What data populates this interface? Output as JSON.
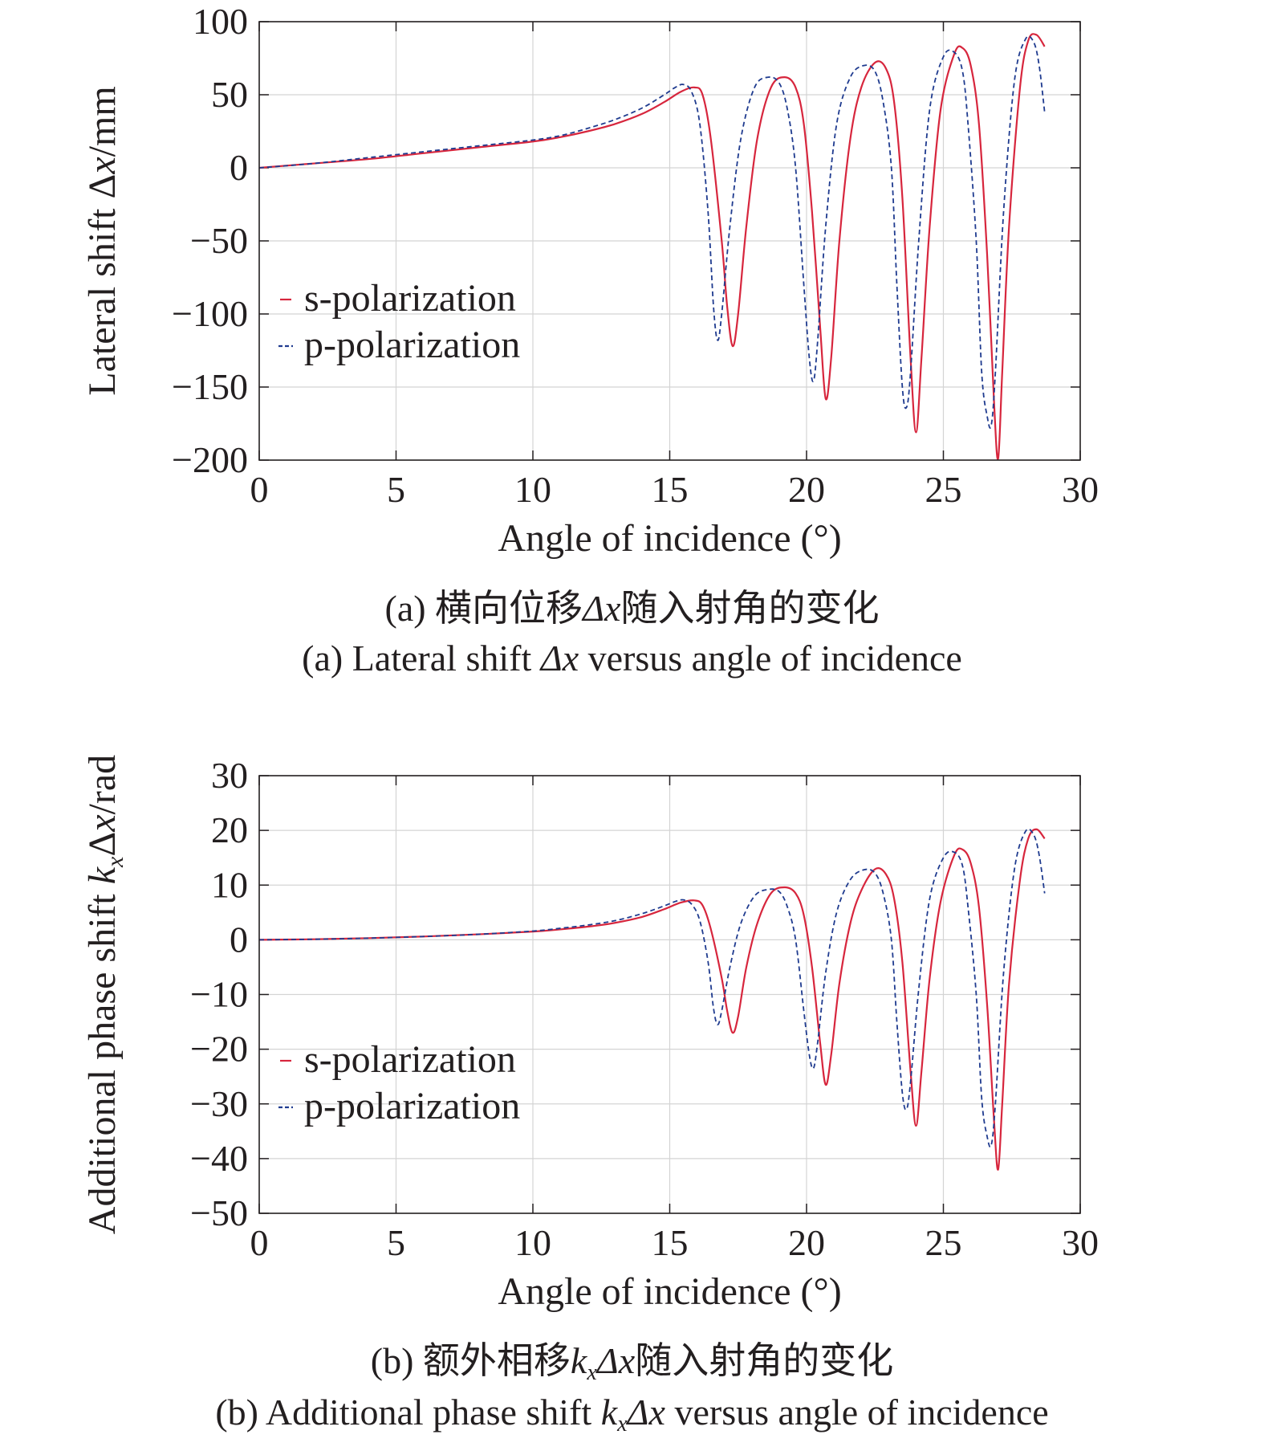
{
  "chart_data": [
    {
      "type": "line",
      "panel": "a",
      "xlabel": "Angle of incidence (°)",
      "ylabel": "Lateral shift Δx/mm",
      "xlim": [
        0,
        30
      ],
      "ylim": [
        -200,
        100
      ],
      "xticks": [
        0,
        5,
        10,
        15,
        20,
        25,
        30
      ],
      "yticks": [
        100,
        50,
        0,
        -50,
        -100,
        -150,
        -200
      ],
      "grid": true,
      "legend_position": "middle-left",
      "series": [
        {
          "name": "s-polarization",
          "style": "solid",
          "color": "#d7263d",
          "x": [
            0,
            2,
            4,
            6,
            8,
            10,
            11,
            12,
            13,
            14,
            14.8,
            15.4,
            15.9,
            16.2,
            16.5,
            16.9,
            17.1,
            17.3,
            17.5,
            17.8,
            18.2,
            18.7,
            19.2,
            19.6,
            19.9,
            20.2,
            20.5,
            20.7,
            20.9,
            21.2,
            21.6,
            22.0,
            22.5,
            22.9,
            23.2,
            23.5,
            23.8,
            24.0,
            24.2,
            24.5,
            24.9,
            25.4,
            25.7,
            26.0,
            26.3,
            26.6,
            26.85,
            27.0,
            27.15,
            27.4,
            27.8,
            28.1,
            28.4,
            28.7
          ],
          "y": [
            0,
            3,
            6,
            10,
            14,
            18,
            21,
            25,
            30,
            37,
            45,
            52,
            55,
            50,
            20,
            -50,
            -95,
            -122,
            -100,
            -40,
            20,
            55,
            62,
            55,
            30,
            -30,
            -110,
            -158,
            -130,
            -50,
            20,
            55,
            72,
            68,
            45,
            -20,
            -130,
            -181,
            -130,
            -40,
            40,
            78,
            82,
            70,
            30,
            -60,
            -160,
            -199,
            -140,
            -40,
            55,
            87,
            91,
            83
          ]
        },
        {
          "name": "p-polarization",
          "style": "dashed",
          "color": "#1f3b8f",
          "x": [
            0,
            2,
            4,
            6,
            8,
            10,
            11,
            12,
            13,
            14,
            14.8,
            15.2,
            15.5,
            15.8,
            16.1,
            16.4,
            16.6,
            16.75,
            16.9,
            17.2,
            17.6,
            18.1,
            18.6,
            19.0,
            19.3,
            19.6,
            19.9,
            20.1,
            20.25,
            20.4,
            20.7,
            21.1,
            21.6,
            22.1,
            22.5,
            22.8,
            23.1,
            23.3,
            23.5,
            23.65,
            23.8,
            24.1,
            24.5,
            25.0,
            25.4,
            25.7,
            25.9,
            26.2,
            26.4,
            26.6,
            26.75,
            26.9,
            27.2,
            27.6,
            28.0,
            28.3,
            28.5,
            28.7
          ],
          "y": [
            0,
            3,
            7,
            11,
            15,
            19,
            22,
            27,
            33,
            41,
            50,
            55,
            57,
            52,
            30,
            -30,
            -95,
            -118,
            -100,
            -40,
            20,
            55,
            62,
            58,
            40,
            0,
            -80,
            -130,
            -146,
            -120,
            -40,
            30,
            62,
            70,
            66,
            45,
            0,
            -80,
            -150,
            -164,
            -140,
            -50,
            40,
            76,
            79,
            66,
            30,
            -50,
            -140,
            -170,
            -176,
            -140,
            -30,
            60,
            88,
            86,
            70,
            38
          ]
        }
      ]
    },
    {
      "type": "line",
      "panel": "b",
      "xlabel": "Angle of incidence (°)",
      "ylabel": "Additional phase shift kxΔx/rad",
      "xlim": [
        0,
        30
      ],
      "ylim": [
        -50,
        30
      ],
      "xticks": [
        0,
        5,
        10,
        15,
        20,
        25,
        30
      ],
      "yticks": [
        30,
        20,
        10,
        0,
        -10,
        -20,
        -30,
        -40,
        -50
      ],
      "grid": true,
      "legend_position": "lower-left",
      "series": [
        {
          "name": "s-polarization",
          "style": "solid",
          "color": "#d7263d",
          "x": [
            0,
            2,
            4,
            6,
            8,
            10,
            11,
            12,
            13,
            14,
            14.8,
            15.4,
            15.9,
            16.2,
            16.5,
            16.9,
            17.1,
            17.3,
            17.5,
            17.8,
            18.2,
            18.7,
            19.2,
            19.6,
            19.9,
            20.2,
            20.5,
            20.7,
            20.9,
            21.2,
            21.6,
            22.0,
            22.5,
            22.9,
            23.2,
            23.5,
            23.8,
            24.0,
            24.2,
            24.5,
            24.9,
            25.4,
            25.7,
            26.0,
            26.3,
            26.6,
            26.85,
            27.0,
            27.15,
            27.4,
            27.8,
            28.1,
            28.4,
            28.7
          ],
          "y": [
            0,
            0.1,
            0.3,
            0.6,
            1.0,
            1.5,
            1.9,
            2.4,
            3.1,
            4.2,
            5.6,
            6.8,
            7.2,
            6.3,
            2.0,
            -7.0,
            -13.0,
            -17.0,
            -14.0,
            -5.0,
            3.0,
            8.5,
            9.6,
            8.5,
            4.5,
            -5.0,
            -19.0,
            -26.5,
            -21.0,
            -8.0,
            3.0,
            9.0,
            12.9,
            12.0,
            7.5,
            -4.0,
            -24.0,
            -34.0,
            -24.0,
            -7.0,
            7.0,
            15.5,
            16.5,
            14.0,
            6.0,
            -12.0,
            -33.0,
            -42.0,
            -30.0,
            -8.0,
            11.0,
            18.5,
            20.2,
            18.5
          ]
        },
        {
          "name": "p-polarization",
          "style": "dashed",
          "color": "#1f3b8f",
          "x": [
            0,
            2,
            4,
            6,
            8,
            10,
            11,
            12,
            13,
            14,
            14.8,
            15.2,
            15.5,
            15.8,
            16.1,
            16.4,
            16.6,
            16.75,
            16.9,
            17.2,
            17.6,
            18.1,
            18.6,
            19.0,
            19.3,
            19.6,
            19.9,
            20.1,
            20.25,
            20.4,
            20.7,
            21.1,
            21.6,
            22.1,
            22.5,
            22.8,
            23.1,
            23.3,
            23.5,
            23.65,
            23.8,
            24.1,
            24.5,
            25.0,
            25.4,
            25.7,
            25.9,
            26.2,
            26.4,
            26.6,
            26.75,
            26.9,
            27.2,
            27.6,
            28.0,
            28.3,
            28.5,
            28.7
          ],
          "y": [
            0,
            0.1,
            0.3,
            0.6,
            1.0,
            1.6,
            2.1,
            2.7,
            3.5,
            4.8,
            6.2,
            7.0,
            7.3,
            6.5,
            3.5,
            -4.0,
            -12.5,
            -15.5,
            -13.0,
            -5.0,
            3.0,
            8.0,
            9.2,
            8.8,
            6.0,
            0,
            -13.0,
            -21.0,
            -23.5,
            -19.0,
            -6.0,
            5.0,
            11.0,
            12.8,
            12.2,
            8.5,
            0,
            -15.0,
            -28.0,
            -31.0,
            -26.0,
            -9.0,
            7.5,
            15.0,
            16.0,
            13.5,
            6.0,
            -10.0,
            -29.0,
            -36.0,
            -37.5,
            -30.0,
            -6.0,
            13.0,
            19.8,
            19.2,
            15.5,
            8.5
          ]
        }
      ]
    }
  ],
  "captions": {
    "a_zh": {
      "prefix": "(a) 横向位移",
      "var": "Δx",
      "suffix": "随入射角的变化"
    },
    "a_en": {
      "prefix": "(a) Lateral shift ",
      "var": "Δx",
      "suffix": " versus angle of incidence"
    },
    "b_zh": {
      "prefix": "(b) 额外相移",
      "k": "k",
      "sub": "x",
      "var": "Δx",
      "suffix": "随入射角的变化"
    },
    "b_en": {
      "prefix": "(b) Additional phase shift ",
      "k": "k",
      "sub": "x",
      "var": "Δx",
      "suffix": " versus angle of incidence"
    }
  },
  "ylabel_parts": {
    "a": {
      "text": "Lateral shift Δ",
      "var": "x",
      "unit": "/mm"
    },
    "b": {
      "text": "Additional phase shift ",
      "k": "k",
      "sub": "x",
      "delta": "Δ",
      "var": "x",
      "unit": "/rad"
    }
  }
}
